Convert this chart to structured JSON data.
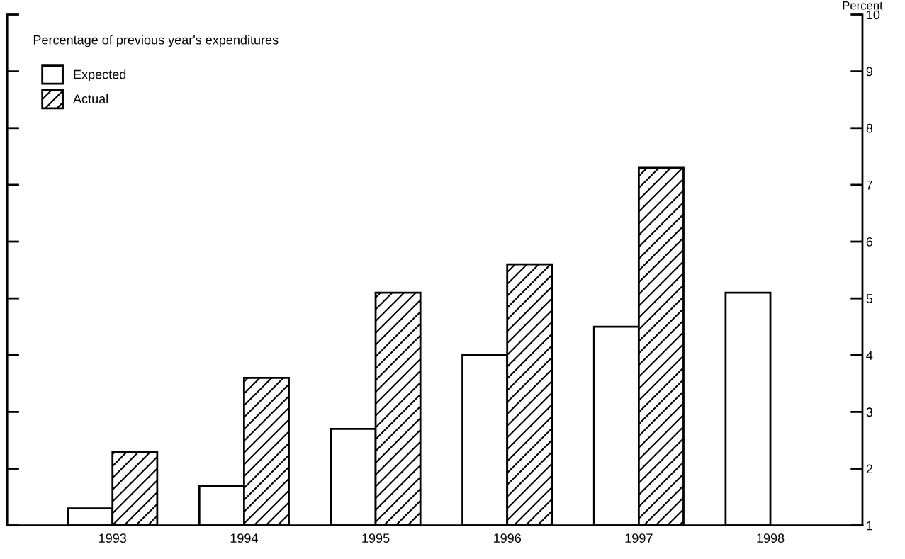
{
  "chart_data": {
    "type": "bar",
    "annotations": [
      "Percentage of previous year's expenditures"
    ],
    "ylabel": "Percent",
    "categories": [
      "1993",
      "1994",
      "1995",
      "1996",
      "1997",
      "1998"
    ],
    "series": [
      {
        "name": "Expected",
        "color": "#ffffff",
        "values": [
          1.3,
          1.7,
          2.7,
          4.0,
          4.5,
          5.1
        ]
      },
      {
        "name": "Actual",
        "color": "#000000",
        "values": [
          2.3,
          3.6,
          5.1,
          5.6,
          7.3,
          null
        ]
      }
    ],
    "ylim": [
      1,
      10
    ],
    "yticks": [
      1,
      2,
      3,
      4,
      5,
      6,
      7,
      8,
      9,
      10
    ],
    "grid": false,
    "legend": "top left"
  }
}
